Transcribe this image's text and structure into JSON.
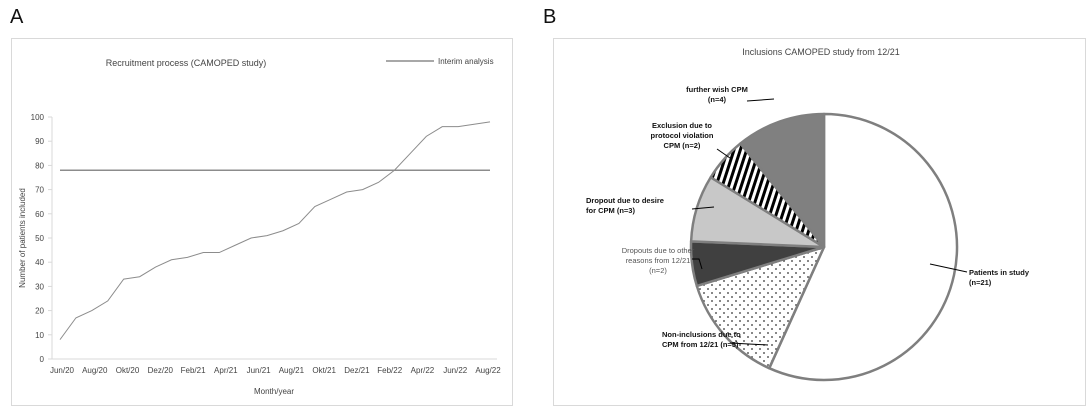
{
  "panels": {
    "a_letter": "A",
    "b_letter": "B"
  },
  "chart_data": [
    {
      "type": "line",
      "title": "Recruitment process (CAMOPED study)",
      "xlabel": "Month/year",
      "ylabel": "Number of patients included",
      "ylim": [
        0,
        100
      ],
      "yticks": [
        0,
        10,
        20,
        30,
        40,
        50,
        60,
        70,
        80,
        90,
        100
      ],
      "xtick_labels": [
        "Jun/20",
        "Aug/20",
        "Okt/20",
        "Dez/20",
        "Feb/21",
        "Apr/21",
        "Jun/21",
        "Aug/21",
        "Okt/21",
        "Dez/21",
        "Feb/22",
        "Apr/22",
        "Jun/22",
        "Aug/22"
      ],
      "x": [
        "Jun/20",
        "Jul/20",
        "Aug/20",
        "Sep/20",
        "Okt/20",
        "Nov/20",
        "Dez/20",
        "Jan/21",
        "Feb/21",
        "Mar/21",
        "Apr/21",
        "Mai/21",
        "Jun/21",
        "Jul/21",
        "Aug/21",
        "Sep/21",
        "Okt/21",
        "Nov/21",
        "Dez/21",
        "Jan/22",
        "Feb/22",
        "Mar/22",
        "Apr/22",
        "Mai/22",
        "Jun/22",
        "Jul/22",
        "Aug/22",
        "Sep/22"
      ],
      "series": [
        {
          "values": [
            8,
            17,
            20,
            24,
            33,
            34,
            38,
            41,
            42,
            44,
            44,
            47,
            50,
            51,
            53,
            56,
            63,
            66,
            69,
            70,
            73,
            78,
            85,
            92,
            96,
            96,
            97,
            98
          ],
          "color": "#8c8c8c"
        },
        {
          "name": "Interim analysis",
          "values": [
            78,
            78,
            78,
            78,
            78,
            78,
            78,
            78,
            78,
            78,
            78,
            78,
            78,
            78,
            78,
            78,
            78,
            78,
            78,
            78,
            78,
            78,
            78,
            78,
            78,
            78,
            78,
            78
          ],
          "color": "#8c8c8c"
        }
      ],
      "grid": false,
      "legend_placement": "top-right"
    },
    {
      "type": "pie",
      "title": "Inclusions CAMOPED study from 12/21",
      "slices": [
        {
          "label_lines": [
            "Patients in study",
            "(n=21)"
          ],
          "value": 21,
          "fill": "white",
          "bold": true
        },
        {
          "label_lines": [
            "Non-inclusions due to",
            "CPM from 12/21 (n=5)"
          ],
          "value": 5,
          "fill": "dots",
          "bold": true
        },
        {
          "label_lines": [
            "Dropouts due to other",
            "reasons from 12/21",
            "(n=2)"
          ],
          "value": 2,
          "fill": "#404040",
          "bold": false
        },
        {
          "label_lines": [
            "Dropout due to desire",
            "for CPM (n=3)"
          ],
          "value": 3,
          "fill": "#c8c8c8",
          "bold": true
        },
        {
          "label_lines": [
            "Exclusion due to",
            "protocol violation",
            "CPM (n=2)"
          ],
          "value": 2,
          "fill": "stripes",
          "bold": true
        },
        {
          "label_lines": [
            "further wish CPM",
            "(n=4)"
          ],
          "value": 4,
          "fill": "#808080",
          "bold": true
        }
      ],
      "colors": {
        "border": "#7f7f7f",
        "dark": "#404040",
        "light": "#c8c8c8",
        "mid": "#808080"
      }
    }
  ]
}
